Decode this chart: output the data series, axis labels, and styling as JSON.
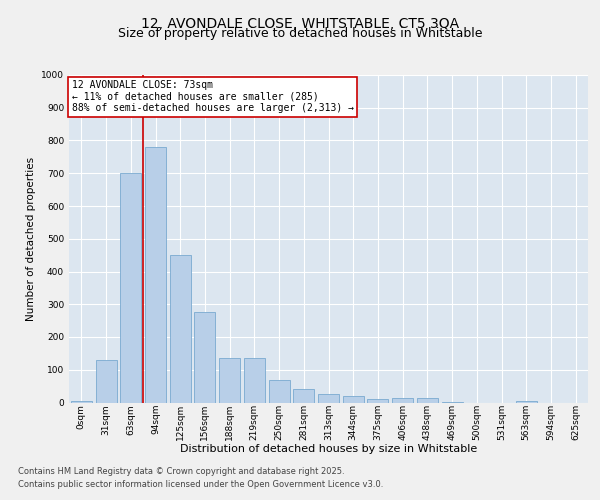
{
  "title": "12, AVONDALE CLOSE, WHITSTABLE, CT5 3QA",
  "subtitle": "Size of property relative to detached houses in Whitstable",
  "xlabel": "Distribution of detached houses by size in Whitstable",
  "ylabel": "Number of detached properties",
  "categories": [
    "0sqm",
    "31sqm",
    "63sqm",
    "94sqm",
    "125sqm",
    "156sqm",
    "188sqm",
    "219sqm",
    "250sqm",
    "281sqm",
    "313sqm",
    "344sqm",
    "375sqm",
    "406sqm",
    "438sqm",
    "469sqm",
    "500sqm",
    "531sqm",
    "563sqm",
    "594sqm",
    "625sqm"
  ],
  "values": [
    5,
    130,
    700,
    780,
    450,
    275,
    135,
    135,
    70,
    40,
    25,
    20,
    10,
    15,
    15,
    3,
    0,
    0,
    5,
    0,
    0
  ],
  "bar_color": "#b8cfe8",
  "bar_edge_color": "#7aaad0",
  "fig_bg_color": "#f0f0f0",
  "plot_bg_color": "#dce6f0",
  "grid_color": "#ffffff",
  "vline_x": 2.5,
  "vline_color": "#cc0000",
  "annotation_text": "12 AVONDALE CLOSE: 73sqm\n← 11% of detached houses are smaller (285)\n88% of semi-detached houses are larger (2,313) →",
  "annotation_box_facecolor": "#ffffff",
  "annotation_box_edgecolor": "#cc0000",
  "ylim": [
    0,
    1000
  ],
  "yticks": [
    0,
    100,
    200,
    300,
    400,
    500,
    600,
    700,
    800,
    900,
    1000
  ],
  "footer_line1": "Contains HM Land Registry data © Crown copyright and database right 2025.",
  "footer_line2": "Contains public sector information licensed under the Open Government Licence v3.0.",
  "title_fontsize": 10,
  "subtitle_fontsize": 9,
  "xlabel_fontsize": 8,
  "ylabel_fontsize": 7.5,
  "tick_fontsize": 6.5,
  "annotation_fontsize": 7,
  "footer_fontsize": 6
}
